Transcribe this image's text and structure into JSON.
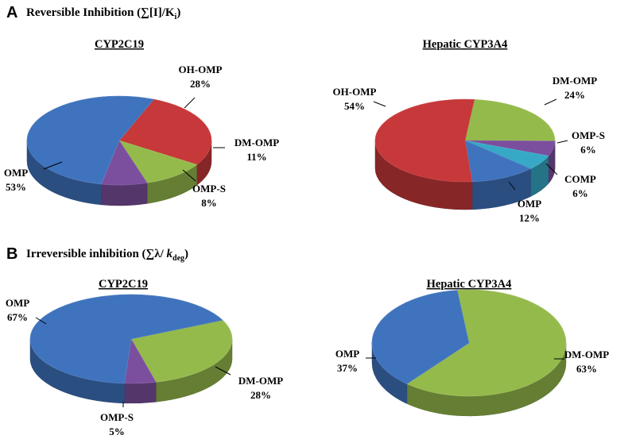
{
  "sections": [
    {
      "letter": "A",
      "title_parts": {
        "main": "Reversible Inhibition (∑[I]/K",
        "sub": "i",
        "end": ")"
      }
    },
    {
      "letter": "B",
      "title_parts": {
        "main": "Irreversible inhibition (∑λ/ ",
        "italic": "k",
        "sub": "deg",
        "end": ")"
      }
    }
  ],
  "colors": {
    "blue": "#3f73bd",
    "red": "#c6383a",
    "green": "#95ba4c",
    "purple": "#7b4f9d",
    "cyan": "#37a9c6"
  },
  "chart_data": [
    {
      "type": "pie",
      "section": "A",
      "title": "CYP2C19",
      "slices": [
        {
          "name": "OH-OMP",
          "value": 28,
          "label": "28%",
          "color": "red"
        },
        {
          "name": "DM-OMP",
          "value": 11,
          "label": "11%",
          "color": "green"
        },
        {
          "name": "OMP-S",
          "value": 8,
          "label": "8%",
          "color": "purple"
        },
        {
          "name": "OMP",
          "value": 53,
          "label": "53%",
          "color": "blue"
        }
      ]
    },
    {
      "type": "pie",
      "section": "A",
      "title": "Hepatic CYP3A4",
      "slices": [
        {
          "name": "DM-OMP",
          "value": 24,
          "label": "24%",
          "color": "green"
        },
        {
          "name": "OMP-S",
          "value": 6,
          "label": "6%",
          "color": "purple"
        },
        {
          "name": "COMP",
          "value": 6,
          "label": "6%",
          "color": "cyan"
        },
        {
          "name": "OMP",
          "value": 12,
          "label": "12%",
          "color": "blue"
        },
        {
          "name": "OH-OMP",
          "value": 54,
          "label": "54%",
          "color": "red"
        }
      ]
    },
    {
      "type": "pie",
      "section": "B",
      "title": "CYP2C19",
      "slices": [
        {
          "name": "DM-OMP",
          "value": 28,
          "label": "28%",
          "color": "green"
        },
        {
          "name": "OMP-S",
          "value": 5,
          "label": "5%",
          "color": "purple"
        },
        {
          "name": "OMP",
          "value": 67,
          "label": "67%",
          "color": "blue"
        }
      ]
    },
    {
      "type": "pie",
      "section": "B",
      "title": "Hepatic CYP3A4",
      "slices": [
        {
          "name": "DM-OMP",
          "value": 63,
          "label": "63%",
          "color": "green"
        },
        {
          "name": "OMP",
          "value": 37,
          "label": "37%",
          "color": "blue"
        }
      ]
    }
  ]
}
